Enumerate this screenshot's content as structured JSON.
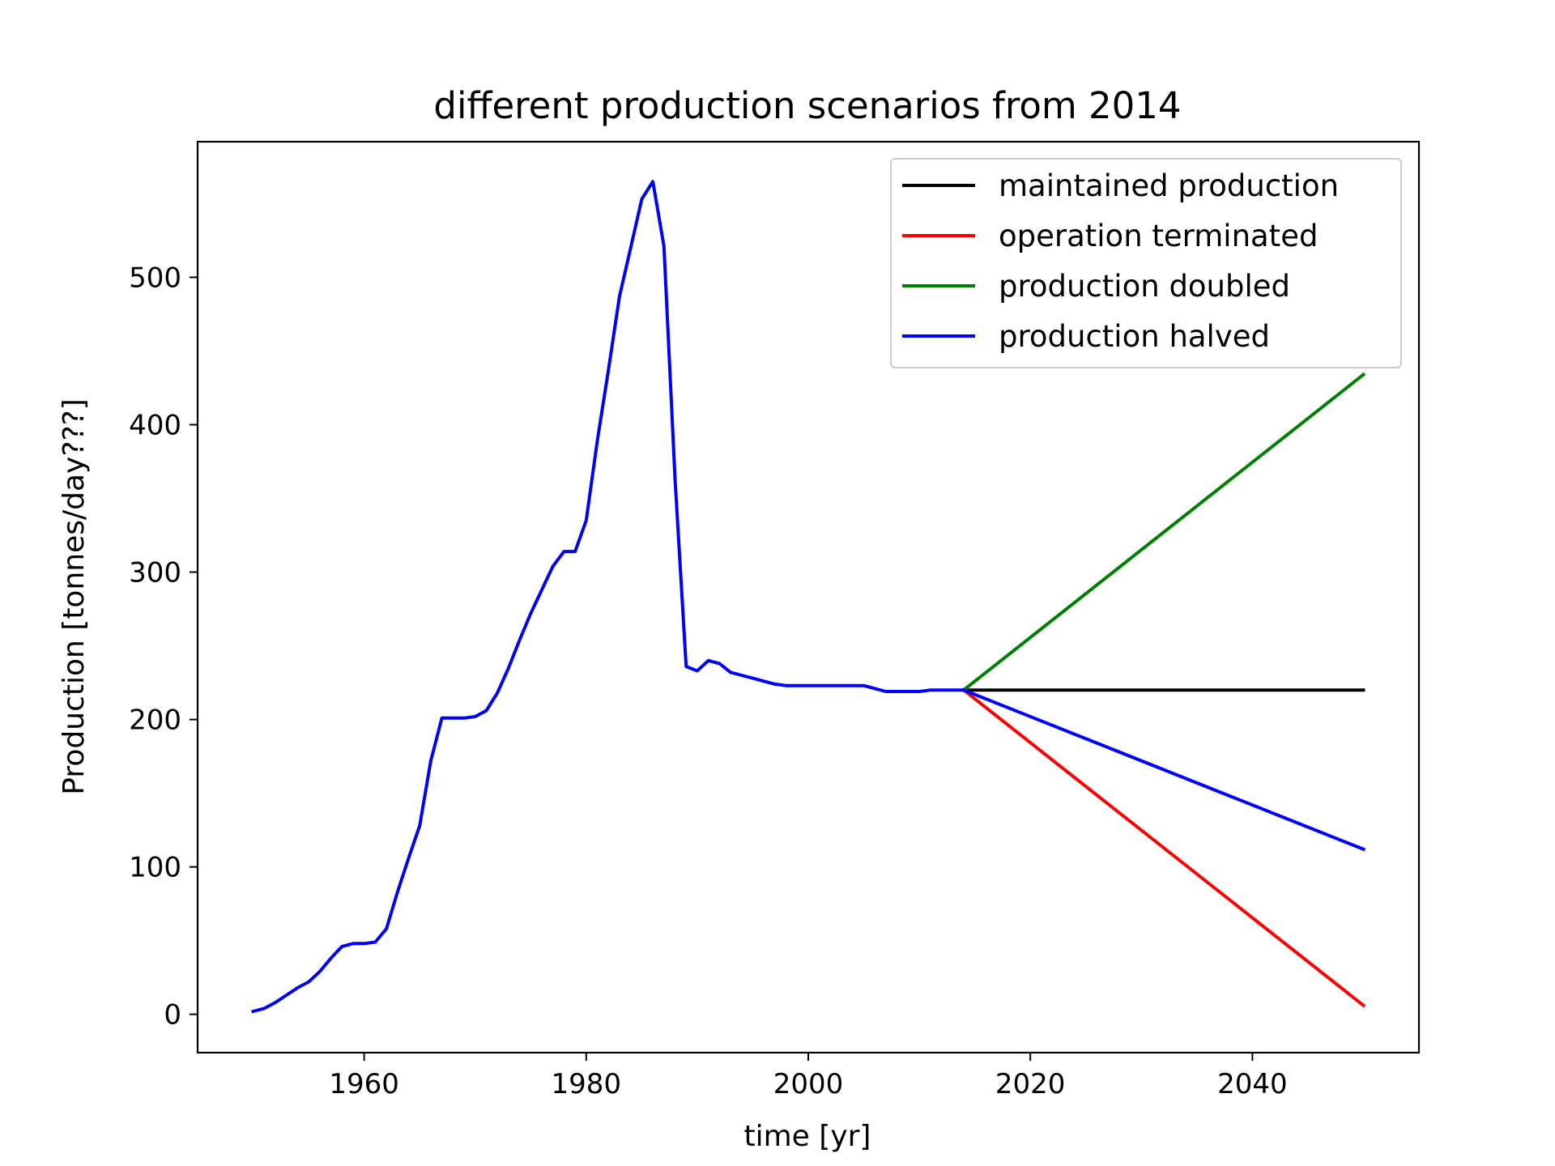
{
  "chart_data": {
    "type": "line",
    "title": "different production scenarios from 2014",
    "xlabel": "time [yr]",
    "ylabel": "Production [tonnes/day???]",
    "xlim": [
      1945,
      2055
    ],
    "ylim": [
      -26,
      592
    ],
    "x_ticks": [
      1960,
      1980,
      2000,
      2020,
      2040
    ],
    "y_ticks": [
      0,
      100,
      200,
      300,
      400,
      500
    ],
    "grid": false,
    "legend_position": "top-right",
    "history": {
      "x": [
        1950,
        1951,
        1952,
        1953,
        1954,
        1955,
        1956,
        1957,
        1958,
        1959,
        1960,
        1961,
        1962,
        1963,
        1964,
        1965,
        1966,
        1967,
        1968,
        1969,
        1970,
        1971,
        1972,
        1973,
        1974,
        1975,
        1976,
        1977,
        1978,
        1979,
        1980,
        1981,
        1982,
        1983,
        1984,
        1985,
        1986,
        1987,
        1988,
        1989,
        1990,
        1991,
        1992,
        1993,
        1994,
        1995,
        1996,
        1997,
        1998,
        1999,
        2000,
        2001,
        2002,
        2003,
        2004,
        2005,
        2006,
        2007,
        2008,
        2009,
        2010,
        2011,
        2012,
        2013,
        2014
      ],
      "y": [
        2,
        4,
        8,
        13,
        18,
        22,
        29,
        38,
        46,
        48,
        48,
        49,
        58,
        83,
        106,
        128,
        172,
        201,
        201,
        201,
        202,
        206,
        218,
        235,
        254,
        272,
        288,
        304,
        314,
        314,
        335,
        389,
        437,
        487,
        520,
        553,
        565,
        521,
        363,
        236,
        233,
        240,
        238,
        232,
        230,
        228,
        226,
        224,
        223,
        223,
        223,
        223,
        223,
        223,
        223,
        223,
        221,
        219,
        219,
        219,
        219,
        220,
        220,
        220,
        220
      ]
    },
    "series": [
      {
        "name": "maintained production",
        "color": "#000000",
        "x": [
          2014,
          2050
        ],
        "y": [
          220,
          220
        ]
      },
      {
        "name": "operation terminated",
        "color": "#ff0000",
        "x": [
          2014,
          2050
        ],
        "y": [
          220,
          6
        ]
      },
      {
        "name": "production doubled",
        "color": "#008000",
        "x": [
          2014,
          2050
        ],
        "y": [
          220,
          434
        ]
      },
      {
        "name": "production halved",
        "color": "#0000ff",
        "x": [
          2014,
          2050
        ],
        "y": [
          220,
          112
        ]
      }
    ],
    "history_color": "#0000ff"
  }
}
